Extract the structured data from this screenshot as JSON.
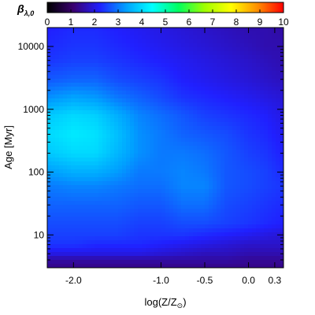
{
  "chart_data": {
    "type": "heatmap",
    "title": "",
    "xlabel": "log(Z/Z",
    "xlabel_subscript": "⊙",
    "xlabel_close": ")",
    "ylabel": "Age [Myr]",
    "x_scale": "linear",
    "y_scale": "log",
    "xlim": [
      -2.3,
      0.4
    ],
    "ylim": [
      3,
      20000
    ],
    "x_ticks": [
      {
        "value": -2.0,
        "label": "-2.0"
      },
      {
        "value": -1.0,
        "label": "-1.0"
      },
      {
        "value": -0.5,
        "label": "-0.5"
      },
      {
        "value": 0.0,
        "label": "0.0"
      },
      {
        "value": 0.3,
        "label": "0.3"
      }
    ],
    "y_ticks": [
      {
        "value": 10,
        "label": "10"
      },
      {
        "value": 100,
        "label": "100"
      },
      {
        "value": 1000,
        "label": "1000"
      },
      {
        "value": 10000,
        "label": "10000"
      }
    ],
    "colorbar": {
      "label": "β",
      "label_subscript": "λ,0",
      "range": [
        0,
        10
      ],
      "ticks": [
        "0",
        "1",
        "2",
        "3",
        "4",
        "5",
        "6",
        "7",
        "8",
        "9",
        "10"
      ],
      "colormap": [
        "#000000",
        "#3a0070",
        "#2020ff",
        "#00a0ff",
        "#00ffff",
        "#00ff60",
        "#a0ff00",
        "#ffff00",
        "#ff9000",
        "#ff0000"
      ]
    },
    "grid": false,
    "x": [
      -2.3,
      -2.0,
      -1.75,
      -1.5,
      -1.25,
      -1.0,
      -0.75,
      -0.5,
      -0.25,
      0.0,
      0.2,
      0.4
    ],
    "y": [
      3,
      4,
      5,
      7,
      10,
      15,
      30,
      60,
      100,
      200,
      400,
      800,
      1500,
      3000,
      6000,
      10000,
      20000
    ],
    "z": [
      [
        1.3,
        1.3,
        1.3,
        1.3,
        1.3,
        1.3,
        1.3,
        1.3,
        1.3,
        1.3,
        1.3,
        1.3
      ],
      [
        1.5,
        1.5,
        1.5,
        1.5,
        1.5,
        1.5,
        1.5,
        1.5,
        1.5,
        1.4,
        1.4,
        1.4
      ],
      [
        2.0,
        2.0,
        2.0,
        2.0,
        2.0,
        1.9,
        1.8,
        1.7,
        1.7,
        1.6,
        1.6,
        1.6
      ],
      [
        2.4,
        2.4,
        2.3,
        2.3,
        2.3,
        2.2,
        2.1,
        2.0,
        1.9,
        1.8,
        1.8,
        1.8
      ],
      [
        2.5,
        2.5,
        2.5,
        2.5,
        2.4,
        2.4,
        2.4,
        2.3,
        2.2,
        2.1,
        2.0,
        1.9
      ],
      [
        2.6,
        2.6,
        2.6,
        2.6,
        2.5,
        2.5,
        2.6,
        2.6,
        2.5,
        2.4,
        2.3,
        2.2
      ],
      [
        2.8,
        2.8,
        2.8,
        2.8,
        2.7,
        2.7,
        2.9,
        2.9,
        2.6,
        2.5,
        2.4,
        2.3
      ],
      [
        3.0,
        3.1,
        3.1,
        3.0,
        2.9,
        2.9,
        3.1,
        3.1,
        2.7,
        2.6,
        2.5,
        2.4
      ],
      [
        3.3,
        3.5,
        3.5,
        3.3,
        3.0,
        3.0,
        3.1,
        3.0,
        2.7,
        2.6,
        2.5,
        2.3
      ],
      [
        3.8,
        4.0,
        4.0,
        3.6,
        3.2,
        3.0,
        3.0,
        2.9,
        2.7,
        2.5,
        2.4,
        2.2
      ],
      [
        4.0,
        4.2,
        4.1,
        3.7,
        3.2,
        3.0,
        2.8,
        2.7,
        2.6,
        2.4,
        2.3,
        2.1
      ],
      [
        3.8,
        4.0,
        3.9,
        3.5,
        3.1,
        2.9,
        2.7,
        2.5,
        2.4,
        2.3,
        2.2,
        2.0
      ],
      [
        3.2,
        3.4,
        3.3,
        3.0,
        2.8,
        2.6,
        2.4,
        2.3,
        2.2,
        2.1,
        2.0,
        1.9
      ],
      [
        2.7,
        2.8,
        2.8,
        2.6,
        2.5,
        2.4,
        2.2,
        2.1,
        2.0,
        1.9,
        1.8,
        1.7
      ],
      [
        2.4,
        2.5,
        2.5,
        2.4,
        2.3,
        2.2,
        2.1,
        2.0,
        1.9,
        1.8,
        1.7,
        1.6
      ],
      [
        2.3,
        2.4,
        2.4,
        2.3,
        2.2,
        2.1,
        2.0,
        1.9,
        1.8,
        1.7,
        1.6,
        1.6
      ],
      [
        2.2,
        2.3,
        2.3,
        2.2,
        2.1,
        2.0,
        1.9,
        1.8,
        1.7,
        1.6,
        1.6,
        1.5
      ]
    ]
  }
}
